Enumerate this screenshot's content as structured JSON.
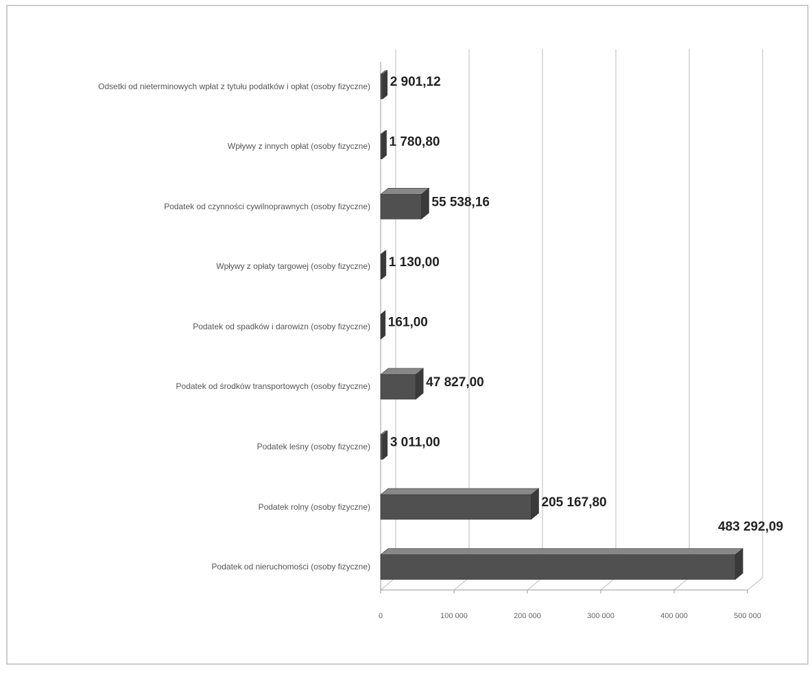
{
  "chart_data": {
    "type": "bar",
    "orientation": "horizontal",
    "categories": [
      "Odsetki od nieterminowych wpłat z tytułu podatków i opłat (osoby fizyczne)",
      "Wpływy z innych opłat (osoby fizyczne)",
      "Podatek od czynności cywilnoprawnych (osoby fizyczne)",
      "Wpływy z opłaty targowej (osoby fizyczne)",
      "Podatek od spadków i darowizn (osoby fizyczne)",
      "Podatek od środków transportowych (osoby fizyczne)",
      "Podatek leśny (osoby fizyczne)",
      "Podatek rolny (osoby fizyczne)",
      "Podatek od nieruchomości (osoby fizyczne)"
    ],
    "values": [
      2901.12,
      1780.8,
      55538.16,
      1130.0,
      161.0,
      47827.0,
      3011.0,
      205167.8,
      483292.09
    ],
    "value_labels": [
      "2 901,12",
      "1 780,80",
      "55 538,16",
      "1 130,00",
      "161,00",
      "47 827,00",
      "3 011,00",
      "205 167,80",
      "483 292,09"
    ],
    "color": "#505050",
    "xlim": [
      0,
      500000
    ],
    "xticks": [
      0,
      {
        "value": 100000,
        "label": "100 000"
      },
      {
        "value": 200000,
        "label": "200 000"
      },
      {
        "value": 300000,
        "label": "300 000"
      },
      {
        "value": 400000,
        "label": "400 000"
      },
      {
        "value": 500000,
        "label": "500 000"
      }
    ],
    "grid": true
  }
}
